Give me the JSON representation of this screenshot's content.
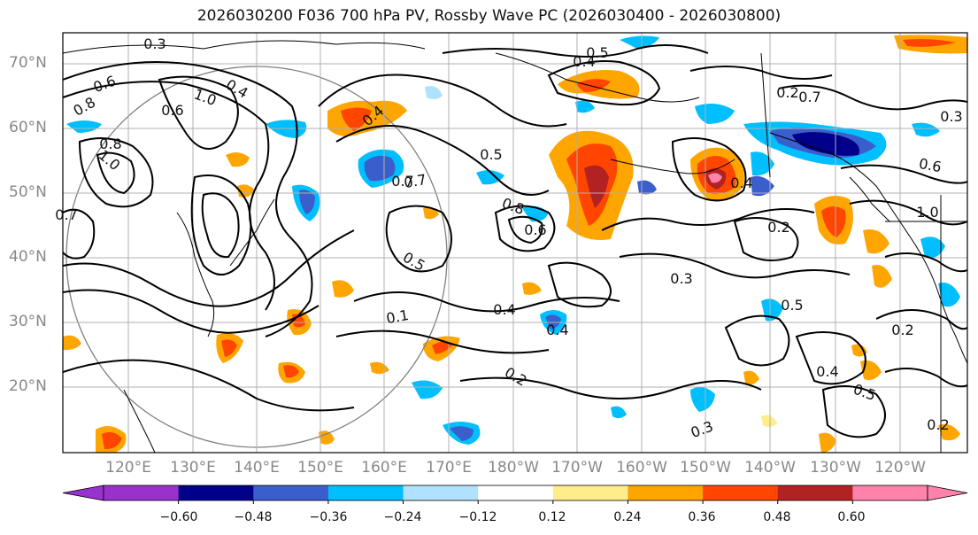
{
  "title": "2026030200 F036 700 hPa PV, Rossby Wave PC (2026030400 - 2026030800)",
  "latitude_labels": [
    "70°N",
    "60°N",
    "50°N",
    "40°N",
    "30°N",
    "20°N"
  ],
  "longitude_labels": [
    "120°E",
    "130°E",
    "140°E",
    "150°E",
    "160°E",
    "170°E",
    "180°W",
    "170°W",
    "160°W",
    "150°W",
    "140°W",
    "130°W",
    "120°W"
  ],
  "colorbar": {
    "colors": [
      "#9932cc",
      "#00008b",
      "#3a5fcd",
      "#00bfff",
      "#b0e2ff",
      "#ffffff",
      "#ffec8b",
      "#ffa500",
      "#ff4500",
      "#b22222",
      "#ff82ab"
    ],
    "tick_labels": [
      "−0.60",
      "−0.48",
      "−0.36",
      "−0.24",
      "−0.12",
      "0.12",
      "0.24",
      "0.36",
      "0.48",
      "0.60"
    ]
  },
  "contour_labels": [
    "0.3",
    "0.6",
    "0.8",
    "1.0",
    "0.7",
    "0.4",
    "1.0",
    "0.6",
    "0.5",
    "0.7",
    "0.8",
    "0.6",
    "0.5",
    "0.4",
    "0.3",
    "0.2",
    "1.0",
    "0.6",
    "0.4",
    "0.5",
    "0.2",
    "0.3",
    "0.4",
    "0.2",
    "0.4",
    "0.2",
    "0.5",
    "0.3",
    "0.7",
    "0.4",
    "0.2",
    "0.5",
    "0.1",
    "0.4",
    "0.8",
    "0.7"
  ]
}
